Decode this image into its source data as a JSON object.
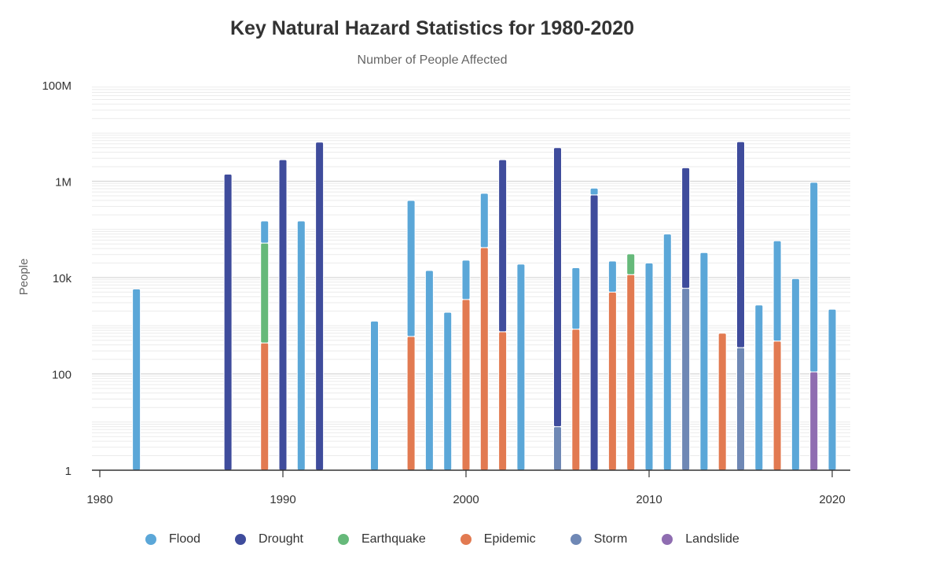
{
  "chart_data": {
    "type": "bar",
    "stacked": true,
    "title": "Key Natural Hazard Statistics for 1980-2020",
    "subtitle": "Number of People Affected",
    "ylabel": "People",
    "xlabel": "",
    "yscale": "log",
    "ylim": [
      1,
      100000000
    ],
    "xlim": [
      1980,
      2021
    ],
    "y_ticks": [
      {
        "value": 1,
        "label": "1"
      },
      {
        "value": 100,
        "label": "100"
      },
      {
        "value": 10000,
        "label": "10k"
      },
      {
        "value": 1000000,
        "label": "1M"
      },
      {
        "value": 100000000,
        "label": "100M"
      }
    ],
    "x_ticks": [
      {
        "value": 1980,
        "label": "1980"
      },
      {
        "value": 1990,
        "label": "1990"
      },
      {
        "value": 2000,
        "label": "2000"
      },
      {
        "value": 2010,
        "label": "2010"
      },
      {
        "value": 2020,
        "label": "2020"
      }
    ],
    "grid": true,
    "legend_position": "bottom",
    "colors": {
      "Flood": "#5ba7d8",
      "Drought": "#3f4c9c",
      "Earthquake": "#66b97a",
      "Epidemic": "#e27a51",
      "Storm": "#6f88b5",
      "Landslide": "#8f6db1"
    },
    "legend": [
      "Flood",
      "Drought",
      "Earthquake",
      "Epidemic",
      "Storm",
      "Landslide"
    ],
    "bars": [
      {
        "year": 1982,
        "segments": [
          {
            "type": "Flood",
            "top": 5800
          }
        ]
      },
      {
        "year": 1987,
        "segments": [
          {
            "type": "Drought",
            "top": 1400000
          }
        ]
      },
      {
        "year": 1989,
        "segments": [
          {
            "type": "Epidemic",
            "top": 440
          },
          {
            "type": "Earthquake",
            "top": 52000
          },
          {
            "type": "Flood",
            "top": 150000
          }
        ]
      },
      {
        "year": 1990,
        "segments": [
          {
            "type": "Drought",
            "top": 2800000
          }
        ]
      },
      {
        "year": 1991,
        "segments": [
          {
            "type": "Flood",
            "top": 150000
          }
        ]
      },
      {
        "year": 1992,
        "segments": [
          {
            "type": "Drought",
            "top": 6500000
          }
        ]
      },
      {
        "year": 1995,
        "segments": [
          {
            "type": "Flood",
            "top": 1250
          }
        ]
      },
      {
        "year": 1997,
        "segments": [
          {
            "type": "Epidemic",
            "top": 600
          },
          {
            "type": "Flood",
            "top": 400000
          }
        ]
      },
      {
        "year": 1998,
        "segments": [
          {
            "type": "Flood",
            "top": 14000
          }
        ]
      },
      {
        "year": 1999,
        "segments": [
          {
            "type": "Flood",
            "top": 1900
          }
        ]
      },
      {
        "year": 2000,
        "segments": [
          {
            "type": "Epidemic",
            "top": 3500
          },
          {
            "type": "Flood",
            "top": 23000
          }
        ]
      },
      {
        "year": 2001,
        "segments": [
          {
            "type": "Epidemic",
            "top": 42000
          },
          {
            "type": "Flood",
            "top": 560000
          }
        ]
      },
      {
        "year": 2002,
        "segments": [
          {
            "type": "Epidemic",
            "top": 750
          },
          {
            "type": "Drought",
            "top": 2800000
          }
        ]
      },
      {
        "year": 2003,
        "segments": [
          {
            "type": "Flood",
            "top": 19000
          }
        ]
      },
      {
        "year": 2005,
        "segments": [
          {
            "type": "Storm",
            "top": 8
          },
          {
            "type": "Drought",
            "top": 5000000
          }
        ]
      },
      {
        "year": 2006,
        "segments": [
          {
            "type": "Epidemic",
            "top": 850
          },
          {
            "type": "Flood",
            "top": 16000
          }
        ]
      },
      {
        "year": 2007,
        "segments": [
          {
            "type": "Drought",
            "top": 520000
          },
          {
            "type": "Flood",
            "top": 720000
          }
        ]
      },
      {
        "year": 2008,
        "segments": [
          {
            "type": "Epidemic",
            "top": 5000
          },
          {
            "type": "Flood",
            "top": 22000
          }
        ]
      },
      {
        "year": 2009,
        "segments": [
          {
            "type": "Epidemic",
            "top": 11500
          },
          {
            "type": "Earthquake",
            "top": 31000
          }
        ]
      },
      {
        "year": 2010,
        "segments": [
          {
            "type": "Flood",
            "top": 20000
          }
        ]
      },
      {
        "year": 2011,
        "segments": [
          {
            "type": "Flood",
            "top": 80000
          }
        ]
      },
      {
        "year": 2012,
        "segments": [
          {
            "type": "Storm",
            "top": 6000
          },
          {
            "type": "Drought",
            "top": 1900000
          }
        ]
      },
      {
        "year": 2013,
        "segments": [
          {
            "type": "Flood",
            "top": 33000
          }
        ]
      },
      {
        "year": 2014,
        "segments": [
          {
            "type": "Epidemic",
            "top": 700
          }
        ]
      },
      {
        "year": 2015,
        "segments": [
          {
            "type": "Storm",
            "top": 350
          },
          {
            "type": "Drought",
            "top": 6600000
          }
        ]
      },
      {
        "year": 2016,
        "segments": [
          {
            "type": "Flood",
            "top": 2700
          }
        ]
      },
      {
        "year": 2017,
        "segments": [
          {
            "type": "Epidemic",
            "top": 480
          },
          {
            "type": "Flood",
            "top": 58000
          }
        ]
      },
      {
        "year": 2018,
        "segments": [
          {
            "type": "Flood",
            "top": 9500
          }
        ]
      },
      {
        "year": 2019,
        "segments": [
          {
            "type": "Landslide",
            "top": 110
          },
          {
            "type": "Flood",
            "top": 950000
          }
        ]
      },
      {
        "year": 2020,
        "segments": [
          {
            "type": "Flood",
            "top": 2200
          }
        ]
      }
    ]
  }
}
